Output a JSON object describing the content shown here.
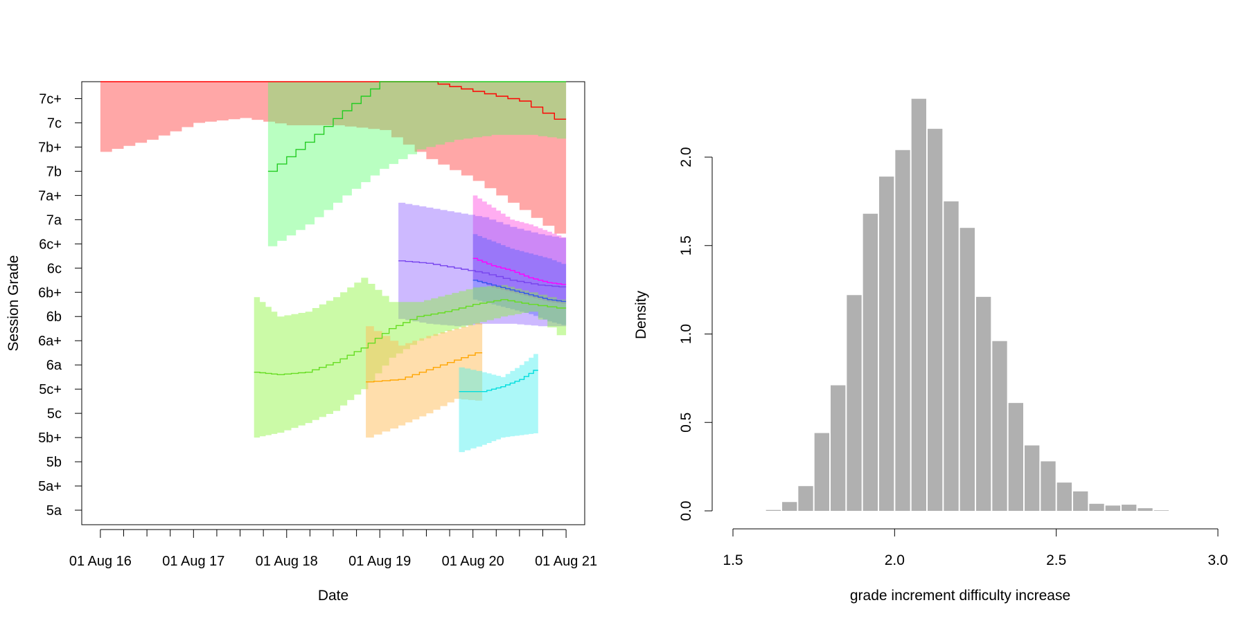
{
  "chart_data": [
    {
      "type": "area",
      "title": "",
      "xlabel": "Date",
      "ylabel": "Session Grade",
      "x_ticks": [
        {
          "value": 0,
          "label": "01 Aug 16"
        },
        {
          "value": 1,
          "label": "01 Aug 17"
        },
        {
          "value": 2,
          "label": "01 Aug 18"
        },
        {
          "value": 3,
          "label": "01 Aug 19"
        },
        {
          "value": 4,
          "label": "01 Aug 20"
        },
        {
          "value": 5,
          "label": "01 Aug 21"
        }
      ],
      "xlim": [
        -0.2,
        5.2
      ],
      "y_ticks": [
        "5a",
        "5a+",
        "5b",
        "5b+",
        "5c",
        "5c+",
        "6a",
        "6a+",
        "6b",
        "6b+",
        "6c",
        "6c+",
        "7a",
        "7a+",
        "7b",
        "7b+",
        "7c",
        "7c+"
      ],
      "ylim": [
        -0.6,
        17.7
      ],
      "grid": false,
      "legend": "none",
      "series": [
        {
          "color": "#ff0000",
          "fill": "rgba(255,60,60,0.45)",
          "x": [
            0,
            0.5,
            1.0,
            1.5,
            2.0,
            2.5,
            3.0,
            3.5,
            4.0,
            4.5,
            5.0
          ],
          "mean": [
            19,
            19,
            19,
            19,
            19,
            19,
            19,
            17.7,
            17.3,
            16.9,
            15.9
          ],
          "lower": [
            14.8,
            15.3,
            16.0,
            16.2,
            15.9,
            15.9,
            15.7,
            14.5,
            13.6,
            12.4,
            11.1
          ],
          "upper": [
            19,
            19,
            19,
            19,
            19,
            19,
            19,
            19,
            19,
            19,
            19
          ]
        },
        {
          "color": "#ff00ff",
          "fill": "rgba(255,50,220,0.4)",
          "x": [
            4.0,
            4.2,
            4.4,
            4.6,
            4.8,
            5.0
          ],
          "mean": [
            10.4,
            10.1,
            9.9,
            9.6,
            9.4,
            9.3
          ],
          "lower": [
            9.5,
            9.2,
            9.0,
            8.8,
            8.6,
            8.5
          ],
          "upper": [
            13.0,
            12.5,
            12.0,
            11.8,
            11.5,
            11.2
          ]
        },
        {
          "color": "#22cc22",
          "fill": "rgba(80,255,100,0.4)",
          "x": [
            1.8,
            2.2,
            2.6,
            3.0,
            3.4,
            3.8,
            4.2,
            4.6,
            5.0
          ],
          "mean": [
            14.0,
            15.2,
            16.5,
            17.7,
            18.3,
            18.5,
            18.4,
            18.2,
            17.7
          ],
          "lower": [
            10.9,
            11.8,
            13.0,
            14.1,
            14.9,
            15.3,
            15.5,
            15.5,
            15.3
          ],
          "upper": [
            19,
            19,
            19,
            19,
            19,
            19,
            19,
            19,
            19
          ]
        },
        {
          "color": "#7744ee",
          "fill": "rgba(130,80,255,0.4)",
          "x": [
            3.2,
            3.5,
            3.8,
            4.1,
            4.4,
            4.7,
            5.0
          ],
          "mean": [
            10.3,
            10.2,
            10.0,
            9.8,
            9.5,
            9.3,
            9.2
          ],
          "lower": [
            7.9,
            7.7,
            7.6,
            7.7,
            7.7,
            7.6,
            7.6
          ],
          "upper": [
            12.7,
            12.5,
            12.3,
            12.1,
            11.7,
            11.4,
            11.2
          ]
        },
        {
          "color": "#3355ee",
          "fill": "rgba(60,90,255,0.35)",
          "x": [
            4.0,
            4.2,
            4.4,
            4.6,
            4.8,
            5.0
          ],
          "mean": [
            9.5,
            9.3,
            9.1,
            8.9,
            8.7,
            8.6
          ],
          "lower": [
            8.7,
            8.5,
            8.3,
            8.1,
            7.8,
            7.6
          ],
          "upper": [
            11.4,
            11.1,
            10.8,
            10.6,
            10.4,
            10.1
          ]
        },
        {
          "color": "#66dd22",
          "fill": "rgba(140,245,60,0.45)",
          "x": [
            1.65,
            1.9,
            2.2,
            2.5,
            2.8,
            3.1,
            3.4,
            3.7,
            4.0,
            4.3,
            4.6,
            5.0
          ],
          "mean": [
            5.7,
            5.6,
            5.7,
            6.1,
            6.7,
            7.5,
            8.0,
            8.2,
            8.5,
            8.7,
            8.5,
            8.3
          ],
          "lower": [
            3.0,
            3.2,
            3.6,
            4.1,
            5.0,
            6.3,
            7.0,
            7.4,
            7.7,
            8.0,
            8.2,
            6.9
          ],
          "upper": [
            8.8,
            8.0,
            8.2,
            8.8,
            9.6,
            8.6,
            8.6,
            8.9,
            9.2,
            9.3,
            9.0,
            8.6
          ]
        },
        {
          "color": "#ffa500",
          "fill": "rgba(255,190,90,0.5)",
          "x": [
            2.85,
            3.2,
            3.5,
            3.8,
            4.1
          ],
          "mean": [
            5.3,
            5.4,
            5.8,
            6.2,
            6.6
          ],
          "lower": [
            3.0,
            3.5,
            4.0,
            4.6,
            4.5
          ],
          "upper": [
            7.6,
            6.8,
            7.2,
            7.5,
            7.8
          ]
        },
        {
          "color": "#00dddd",
          "fill": "rgba(70,240,240,0.45)",
          "x": [
            3.85,
            4.1,
            4.3,
            4.5,
            4.7
          ],
          "mean": [
            4.9,
            4.9,
            5.1,
            5.4,
            5.9
          ],
          "lower": [
            2.4,
            2.7,
            3.0,
            3.1,
            3.2
          ],
          "upper": [
            5.9,
            5.7,
            5.5,
            6.0,
            6.6
          ]
        }
      ]
    },
    {
      "type": "bar",
      "title": "",
      "xlabel": "grade increment difficulty increase",
      "ylabel": "Density",
      "xlim": [
        1.5,
        3.0
      ],
      "ylim": [
        0,
        2.0
      ],
      "x_ticks": [
        1.5,
        2.0,
        2.5,
        3.0
      ],
      "y_ticks": [
        0.0,
        0.5,
        1.0,
        1.5,
        2.0
      ],
      "y_tick_labels": [
        "0.0",
        "0.5",
        "1.0",
        "1.5",
        "2.0"
      ],
      "bar_color": "#b0b0b0",
      "bin_width": 0.05,
      "bin_edges_start": 1.6,
      "values": [
        0.005,
        0.05,
        0.14,
        0.44,
        0.71,
        1.22,
        1.68,
        1.89,
        2.04,
        2.33,
        2.16,
        1.75,
        1.6,
        1.21,
        0.96,
        0.61,
        0.37,
        0.28,
        0.16,
        0.11,
        0.04,
        0.03,
        0.035,
        0.015,
        0.003
      ]
    }
  ]
}
